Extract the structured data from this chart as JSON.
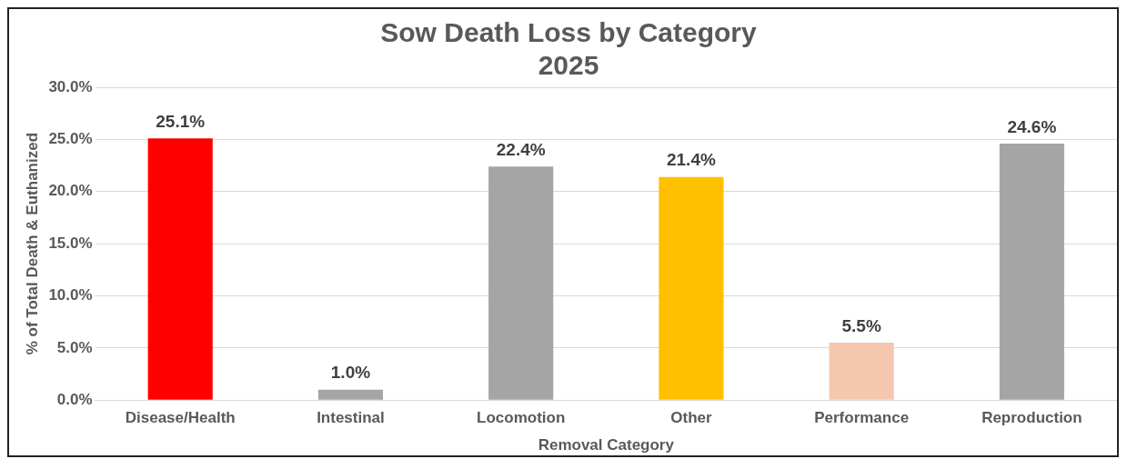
{
  "chart_data": {
    "type": "bar",
    "title": "Sow Death Loss by Category",
    "subtitle": "2025",
    "xlabel": "Removal Category",
    "ylabel": "% of Total Death & Euthanized",
    "categories": [
      "Disease/Health",
      "Intestinal",
      "Locomotion",
      "Other",
      "Performance",
      "Reproduction"
    ],
    "values": [
      25.1,
      1.0,
      22.4,
      21.4,
      5.5,
      24.6
    ],
    "colors": [
      "#ff0000",
      "#a5a5a5",
      "#a5a5a5",
      "#ffc000",
      "#f4c7ae",
      "#a5a5a5"
    ],
    "value_labels": [
      "25.1%",
      "1.0%",
      "22.4%",
      "21.4%",
      "5.5%",
      "24.6%"
    ],
    "ylim": [
      0,
      30
    ],
    "yticks": [
      {
        "value": 0,
        "label": "0.0%"
      },
      {
        "value": 5,
        "label": "5.0%"
      },
      {
        "value": 10,
        "label": "10.0%"
      },
      {
        "value": 15,
        "label": "15.0%"
      },
      {
        "value": 20,
        "label": "20.0%"
      },
      {
        "value": 25,
        "label": "25.0%"
      },
      {
        "value": 30,
        "label": "30.0%"
      }
    ],
    "grid": "y"
  }
}
